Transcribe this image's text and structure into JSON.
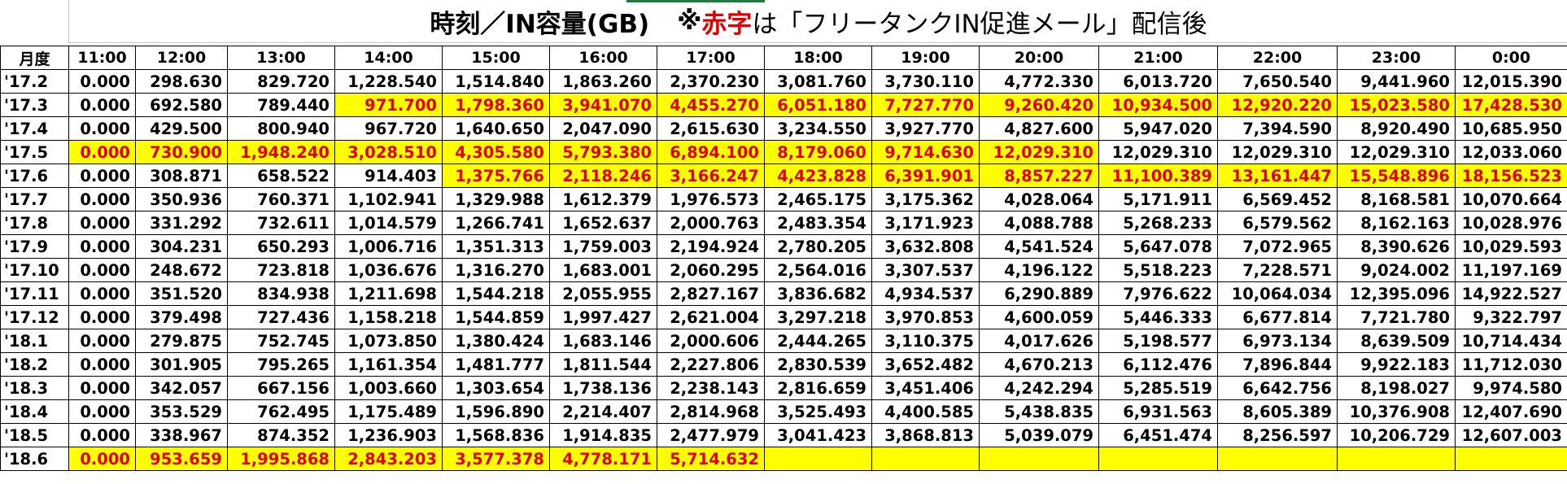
{
  "title": {
    "main": "時刻／IN容量(GB)",
    "note_prefix": "※",
    "note_red": "赤字",
    "note_rest": "は「フリータンクIN促進メール」配信後"
  },
  "colors": {
    "highlight_fill": "#ffff00",
    "highlight_text": "#e00000",
    "grid_line": "#000000"
  },
  "header": [
    "月度",
    "11:00",
    "12:00",
    "13:00",
    "14:00",
    "15:00",
    "16:00",
    "17:00",
    "18:00",
    "19:00",
    "20:00",
    "21:00",
    "22:00",
    "23:00",
    "0:00"
  ],
  "rows": [
    {
      "month": "'17.2",
      "highlight_from": -1,
      "highlight_to": -1,
      "values": [
        "0.000",
        "298.630",
        "829.720",
        "1,228.540",
        "1,514.840",
        "1,863.260",
        "2,370.230",
        "3,081.760",
        "3,730.110",
        "4,772.330",
        "6,013.720",
        "7,650.540",
        "9,441.960",
        "12,015.390"
      ]
    },
    {
      "month": "'17.3",
      "highlight_from": 3,
      "highlight_to": 13,
      "values": [
        "0.000",
        "692.580",
        "789.440",
        "971.700",
        "1,798.360",
        "3,941.070",
        "4,455.270",
        "6,051.180",
        "7,727.770",
        "9,260.420",
        "10,934.500",
        "12,920.220",
        "15,023.580",
        "17,428.530"
      ]
    },
    {
      "month": "'17.4",
      "highlight_from": -1,
      "highlight_to": -1,
      "values": [
        "0.000",
        "429.500",
        "800.940",
        "967.720",
        "1,640.650",
        "2,047.090",
        "2,615.630",
        "3,234.550",
        "3,927.770",
        "4,827.600",
        "5,947.020",
        "7,394.590",
        "8,920.490",
        "10,685.950"
      ]
    },
    {
      "month": "'17.5",
      "highlight_from": 0,
      "highlight_to": 9,
      "values": [
        "0.000",
        "730.900",
        "1,948.240",
        "3,028.510",
        "4,305.580",
        "5,793.380",
        "6,894.100",
        "8,179.060",
        "9,714.630",
        "12,029.310",
        "12,029.310",
        "12,029.310",
        "12,029.310",
        "12,033.060"
      ]
    },
    {
      "month": "'17.6",
      "highlight_from": 4,
      "highlight_to": 13,
      "values": [
        "0.000",
        "308.871",
        "658.522",
        "914.403",
        "1,375.766",
        "2,118.246",
        "3,166.247",
        "4,423.828",
        "6,391.901",
        "8,857.227",
        "11,100.389",
        "13,161.447",
        "15,548.896",
        "18,156.523"
      ]
    },
    {
      "month": "'17.7",
      "highlight_from": -1,
      "highlight_to": -1,
      "values": [
        "0.000",
        "350.936",
        "760.371",
        "1,102.941",
        "1,329.988",
        "1,612.379",
        "1,976.573",
        "2,465.175",
        "3,175.362",
        "4,028.064",
        "5,171.911",
        "6,569.452",
        "8,168.581",
        "10,070.664"
      ]
    },
    {
      "month": "'17.8",
      "highlight_from": -1,
      "highlight_to": -1,
      "values": [
        "0.000",
        "331.292",
        "732.611",
        "1,014.579",
        "1,266.741",
        "1,652.637",
        "2,000.763",
        "2,483.354",
        "3,171.923",
        "4,088.788",
        "5,268.233",
        "6,579.562",
        "8,162.163",
        "10,028.976"
      ]
    },
    {
      "month": "'17.9",
      "highlight_from": -1,
      "highlight_to": -1,
      "values": [
        "0.000",
        "304.231",
        "650.293",
        "1,006.716",
        "1,351.313",
        "1,759.003",
        "2,194.924",
        "2,780.205",
        "3,632.808",
        "4,541.524",
        "5,647.078",
        "7,072.965",
        "8,390.626",
        "10,029.593"
      ]
    },
    {
      "month": "'17.10",
      "highlight_from": -1,
      "highlight_to": -1,
      "values": [
        "0.000",
        "248.672",
        "723.818",
        "1,036.676",
        "1,316.270",
        "1,683.001",
        "2,060.295",
        "2,564.016",
        "3,307.537",
        "4,196.122",
        "5,518.223",
        "7,228.571",
        "9,024.002",
        "11,197.169"
      ]
    },
    {
      "month": "'17.11",
      "highlight_from": -1,
      "highlight_to": -1,
      "values": [
        "0.000",
        "351.520",
        "834.938",
        "1,211.698",
        "1,544.218",
        "2,055.955",
        "2,827.167",
        "3,836.682",
        "4,934.537",
        "6,290.889",
        "7,976.622",
        "10,064.034",
        "12,395.096",
        "14,922.527"
      ]
    },
    {
      "month": "'17.12",
      "highlight_from": -1,
      "highlight_to": -1,
      "values": [
        "0.000",
        "379.498",
        "727.436",
        "1,158.218",
        "1,544.859",
        "1,997.427",
        "2,621.004",
        "3,297.218",
        "3,970.853",
        "4,600.059",
        "5,446.333",
        "6,677.814",
        "7,721.780",
        "9,322.797"
      ]
    },
    {
      "month": "'18.1",
      "highlight_from": -1,
      "highlight_to": -1,
      "values": [
        "0.000",
        "279.875",
        "752.745",
        "1,073.850",
        "1,380.424",
        "1,683.146",
        "2,000.606",
        "2,444.265",
        "3,110.375",
        "4,017.626",
        "5,198.577",
        "6,973.134",
        "8,639.509",
        "10,714.434"
      ]
    },
    {
      "month": "'18.2",
      "highlight_from": -1,
      "highlight_to": -1,
      "values": [
        "0.000",
        "301.905",
        "795.265",
        "1,161.354",
        "1,481.777",
        "1,811.544",
        "2,227.806",
        "2,830.539",
        "3,652.482",
        "4,670.213",
        "6,112.476",
        "7,896.844",
        "9,922.183",
        "11,712.030"
      ]
    },
    {
      "month": "'18.3",
      "highlight_from": -1,
      "highlight_to": -1,
      "values": [
        "0.000",
        "342.057",
        "667.156",
        "1,003.660",
        "1,303.654",
        "1,738.136",
        "2,238.143",
        "2,816.659",
        "3,451.406",
        "4,242.294",
        "5,285.519",
        "6,642.756",
        "8,198.027",
        "9,974.580"
      ]
    },
    {
      "month": "'18.4",
      "highlight_from": -1,
      "highlight_to": -1,
      "values": [
        "0.000",
        "353.529",
        "762.495",
        "1,175.489",
        "1,596.890",
        "2,214.407",
        "2,814.968",
        "3,525.493",
        "4,400.585",
        "5,438.835",
        "6,931.563",
        "8,605.389",
        "10,376.908",
        "12,407.690"
      ]
    },
    {
      "month": "'18.5",
      "highlight_from": -1,
      "highlight_to": -1,
      "values": [
        "0.000",
        "338.967",
        "874.352",
        "1,236.903",
        "1,568.836",
        "1,914.835",
        "2,477.979",
        "3,041.423",
        "3,868.813",
        "5,039.079",
        "6,451.474",
        "8,256.597",
        "10,206.729",
        "12,607.003"
      ]
    },
    {
      "month": "'18.6",
      "highlight_from": 0,
      "highlight_to": 13,
      "values": [
        "0.000",
        "953.659",
        "1,995.868",
        "2,843.203",
        "3,577.378",
        "4,778.171",
        "5,714.632",
        "",
        "",
        "",
        "",
        "",
        "",
        ""
      ]
    }
  ]
}
